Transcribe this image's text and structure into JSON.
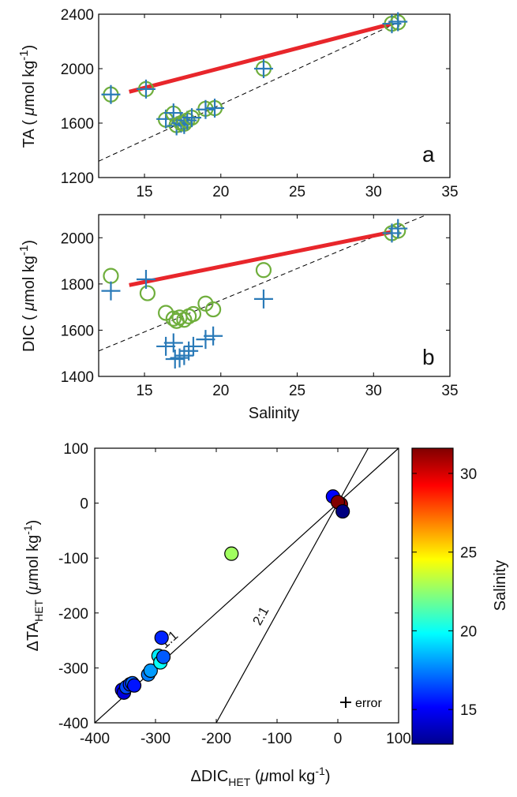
{
  "chart_data": [
    {
      "panel": "a",
      "type": "scatter",
      "xlabel": "",
      "ylabel": "TA ( μmol kg -1)",
      "ylabel_parts": {
        "main": "TA ( ",
        "mu": "μ",
        "rest": "mol kg",
        "sup": "-1",
        "close": ")"
      },
      "panel_label": "a",
      "xlim": [
        12,
        35
      ],
      "ylim": [
        1200,
        2400
      ],
      "xticks": [
        15,
        20,
        25,
        30,
        35
      ],
      "yticks": [
        1200,
        1600,
        2000,
        2400
      ],
      "colors": {
        "plus": "#2a7ab8",
        "circle": "#6fae3c",
        "fit": "#e8262b",
        "ref": "#000000"
      },
      "fit_line": {
        "x": [
          14.0,
          31.2
        ],
        "y": [
          1830,
          2330
        ]
      },
      "dashed_line": {
        "x": [
          12.0,
          31.8
        ],
        "y": [
          1320,
          2350
        ]
      },
      "points": [
        {
          "s": 12.8,
          "plus": 1810,
          "circle": 1810
        },
        {
          "s": 15.1,
          "plus": 1850,
          "circle": 1850
        },
        {
          "s": 16.4,
          "plus": 1630,
          "circle": 1625
        },
        {
          "s": 16.9,
          "plus": 1675,
          "circle": 1670
        },
        {
          "s": 17.1,
          "plus": 1580,
          "circle": 1585
        },
        {
          "s": 17.4,
          "plus": 1600,
          "circle": 1600
        },
        {
          "s": 17.6,
          "plus": 1590,
          "circle": 1595
        },
        {
          "s": 17.8,
          "plus": 1620,
          "circle": 1620
        },
        {
          "s": 18.1,
          "plus": 1640,
          "circle": 1640
        },
        {
          "s": 19.0,
          "plus": 1700,
          "circle": 1705
        },
        {
          "s": 19.6,
          "plus": 1710,
          "circle": 1710
        },
        {
          "s": 22.8,
          "plus": 2000,
          "circle": 2000
        },
        {
          "s": 31.2,
          "plus": 2330,
          "circle": 2330
        },
        {
          "s": 31.6,
          "plus": 2345,
          "circle": 2340
        }
      ]
    },
    {
      "panel": "b",
      "type": "scatter",
      "xlabel": "Salinity",
      "ylabel": "DIC ( μmol kg -1)",
      "ylabel_parts": {
        "main": "DIC ( ",
        "mu": "μ",
        "rest": "mol kg",
        "sup": "-1",
        "close": ")"
      },
      "panel_label": "b",
      "xlim": [
        12,
        35
      ],
      "ylim": [
        1400,
        2100
      ],
      "xticks": [
        15,
        20,
        25,
        30,
        35
      ],
      "yticks": [
        1400,
        1600,
        1800,
        2000
      ],
      "fit_line": {
        "x": [
          14.0,
          31.2
        ],
        "y": [
          1795,
          2025
        ]
      },
      "dashed_line": {
        "x": [
          12.0,
          33.5
        ],
        "y": [
          1510,
          2100
        ]
      },
      "plus_points": [
        {
          "s": 12.8,
          "v": 1770
        },
        {
          "s": 15.1,
          "v": 1820
        },
        {
          "s": 16.4,
          "v": 1530
        },
        {
          "s": 16.9,
          "v": 1545
        },
        {
          "s": 17.0,
          "v": 1475
        },
        {
          "s": 17.3,
          "v": 1480
        },
        {
          "s": 17.6,
          "v": 1490
        },
        {
          "s": 17.9,
          "v": 1510
        },
        {
          "s": 18.2,
          "v": 1530
        },
        {
          "s": 19.0,
          "v": 1560
        },
        {
          "s": 19.5,
          "v": 1575
        },
        {
          "s": 22.8,
          "v": 1735
        },
        {
          "s": 31.2,
          "v": 2020
        },
        {
          "s": 31.6,
          "v": 2040
        }
      ],
      "circle_points": [
        {
          "s": 12.8,
          "v": 1835
        },
        {
          "s": 15.2,
          "v": 1760
        },
        {
          "s": 16.4,
          "v": 1675
        },
        {
          "s": 16.9,
          "v": 1650
        },
        {
          "s": 17.1,
          "v": 1640
        },
        {
          "s": 17.3,
          "v": 1655
        },
        {
          "s": 17.6,
          "v": 1645
        },
        {
          "s": 17.9,
          "v": 1660
        },
        {
          "s": 18.2,
          "v": 1670
        },
        {
          "s": 19.0,
          "v": 1715
        },
        {
          "s": 19.5,
          "v": 1690
        },
        {
          "s": 22.8,
          "v": 1860
        },
        {
          "s": 31.2,
          "v": 2020
        },
        {
          "s": 31.6,
          "v": 2030
        }
      ]
    },
    {
      "panel": "c",
      "type": "scatter",
      "xlabel": "ΔDICHET (μmol kg-1)",
      "xlabel_parts": {
        "delta": "ΔDIC",
        "sub": "HET",
        "open": " (",
        "mu": "μ",
        "rest": "mol kg",
        "sup": "-1",
        "close": ")"
      },
      "ylabel": "ΔTAHET (μmol kg-1)",
      "ylabel_parts": {
        "delta": "ΔTA",
        "sub": "HET",
        "open": " (",
        "mu": "μ",
        "rest": "mol kg",
        "sup": "-1",
        "close": ")"
      },
      "xlim": [
        -400,
        100
      ],
      "ylim": [
        -400,
        100
      ],
      "xticks": [
        -400,
        -300,
        -200,
        -100,
        0,
        100
      ],
      "yticks": [
        -400,
        -300,
        -200,
        -100,
        0,
        100
      ],
      "reference_lines": [
        {
          "label": "1:1",
          "x": [
            -400,
            100
          ],
          "y": [
            -400,
            100
          ]
        },
        {
          "label": "2:1",
          "x": [
            -200,
            50
          ],
          "y": [
            -400,
            100
          ]
        }
      ],
      "legend": {
        "symbol": "+",
        "label": "error",
        "position": "bottom-right"
      },
      "colorbar": {
        "label": "Salinity",
        "min": 12.8,
        "max": 31.6,
        "ticks": [
          15,
          20,
          25,
          30
        ]
      },
      "points": [
        {
          "x": -355,
          "y": -340,
          "s": 15.0
        },
        {
          "x": -352,
          "y": -345,
          "s": 14.5
        },
        {
          "x": -348,
          "y": -335,
          "s": 16.5
        },
        {
          "x": -342,
          "y": -330,
          "s": 16.0
        },
        {
          "x": -338,
          "y": -328,
          "s": 17.0
        },
        {
          "x": -335,
          "y": -332,
          "s": 15.5
        },
        {
          "x": -312,
          "y": -312,
          "s": 17.5
        },
        {
          "x": -308,
          "y": -305,
          "s": 18.0
        },
        {
          "x": -295,
          "y": -278,
          "s": 19.5
        },
        {
          "x": -292,
          "y": -290,
          "s": 20.0
        },
        {
          "x": -287,
          "y": -280,
          "s": 16.8
        },
        {
          "x": -290,
          "y": -245,
          "s": 15.8
        },
        {
          "x": -175,
          "y": -92,
          "s": 22.8
        },
        {
          "x": -8,
          "y": 12,
          "s": 15.1
        },
        {
          "x": 5,
          "y": -2,
          "s": 31.2
        },
        {
          "x": 0,
          "y": 2,
          "s": 31.6
        },
        {
          "x": 8,
          "y": -15,
          "s": 12.8
        }
      ]
    }
  ]
}
